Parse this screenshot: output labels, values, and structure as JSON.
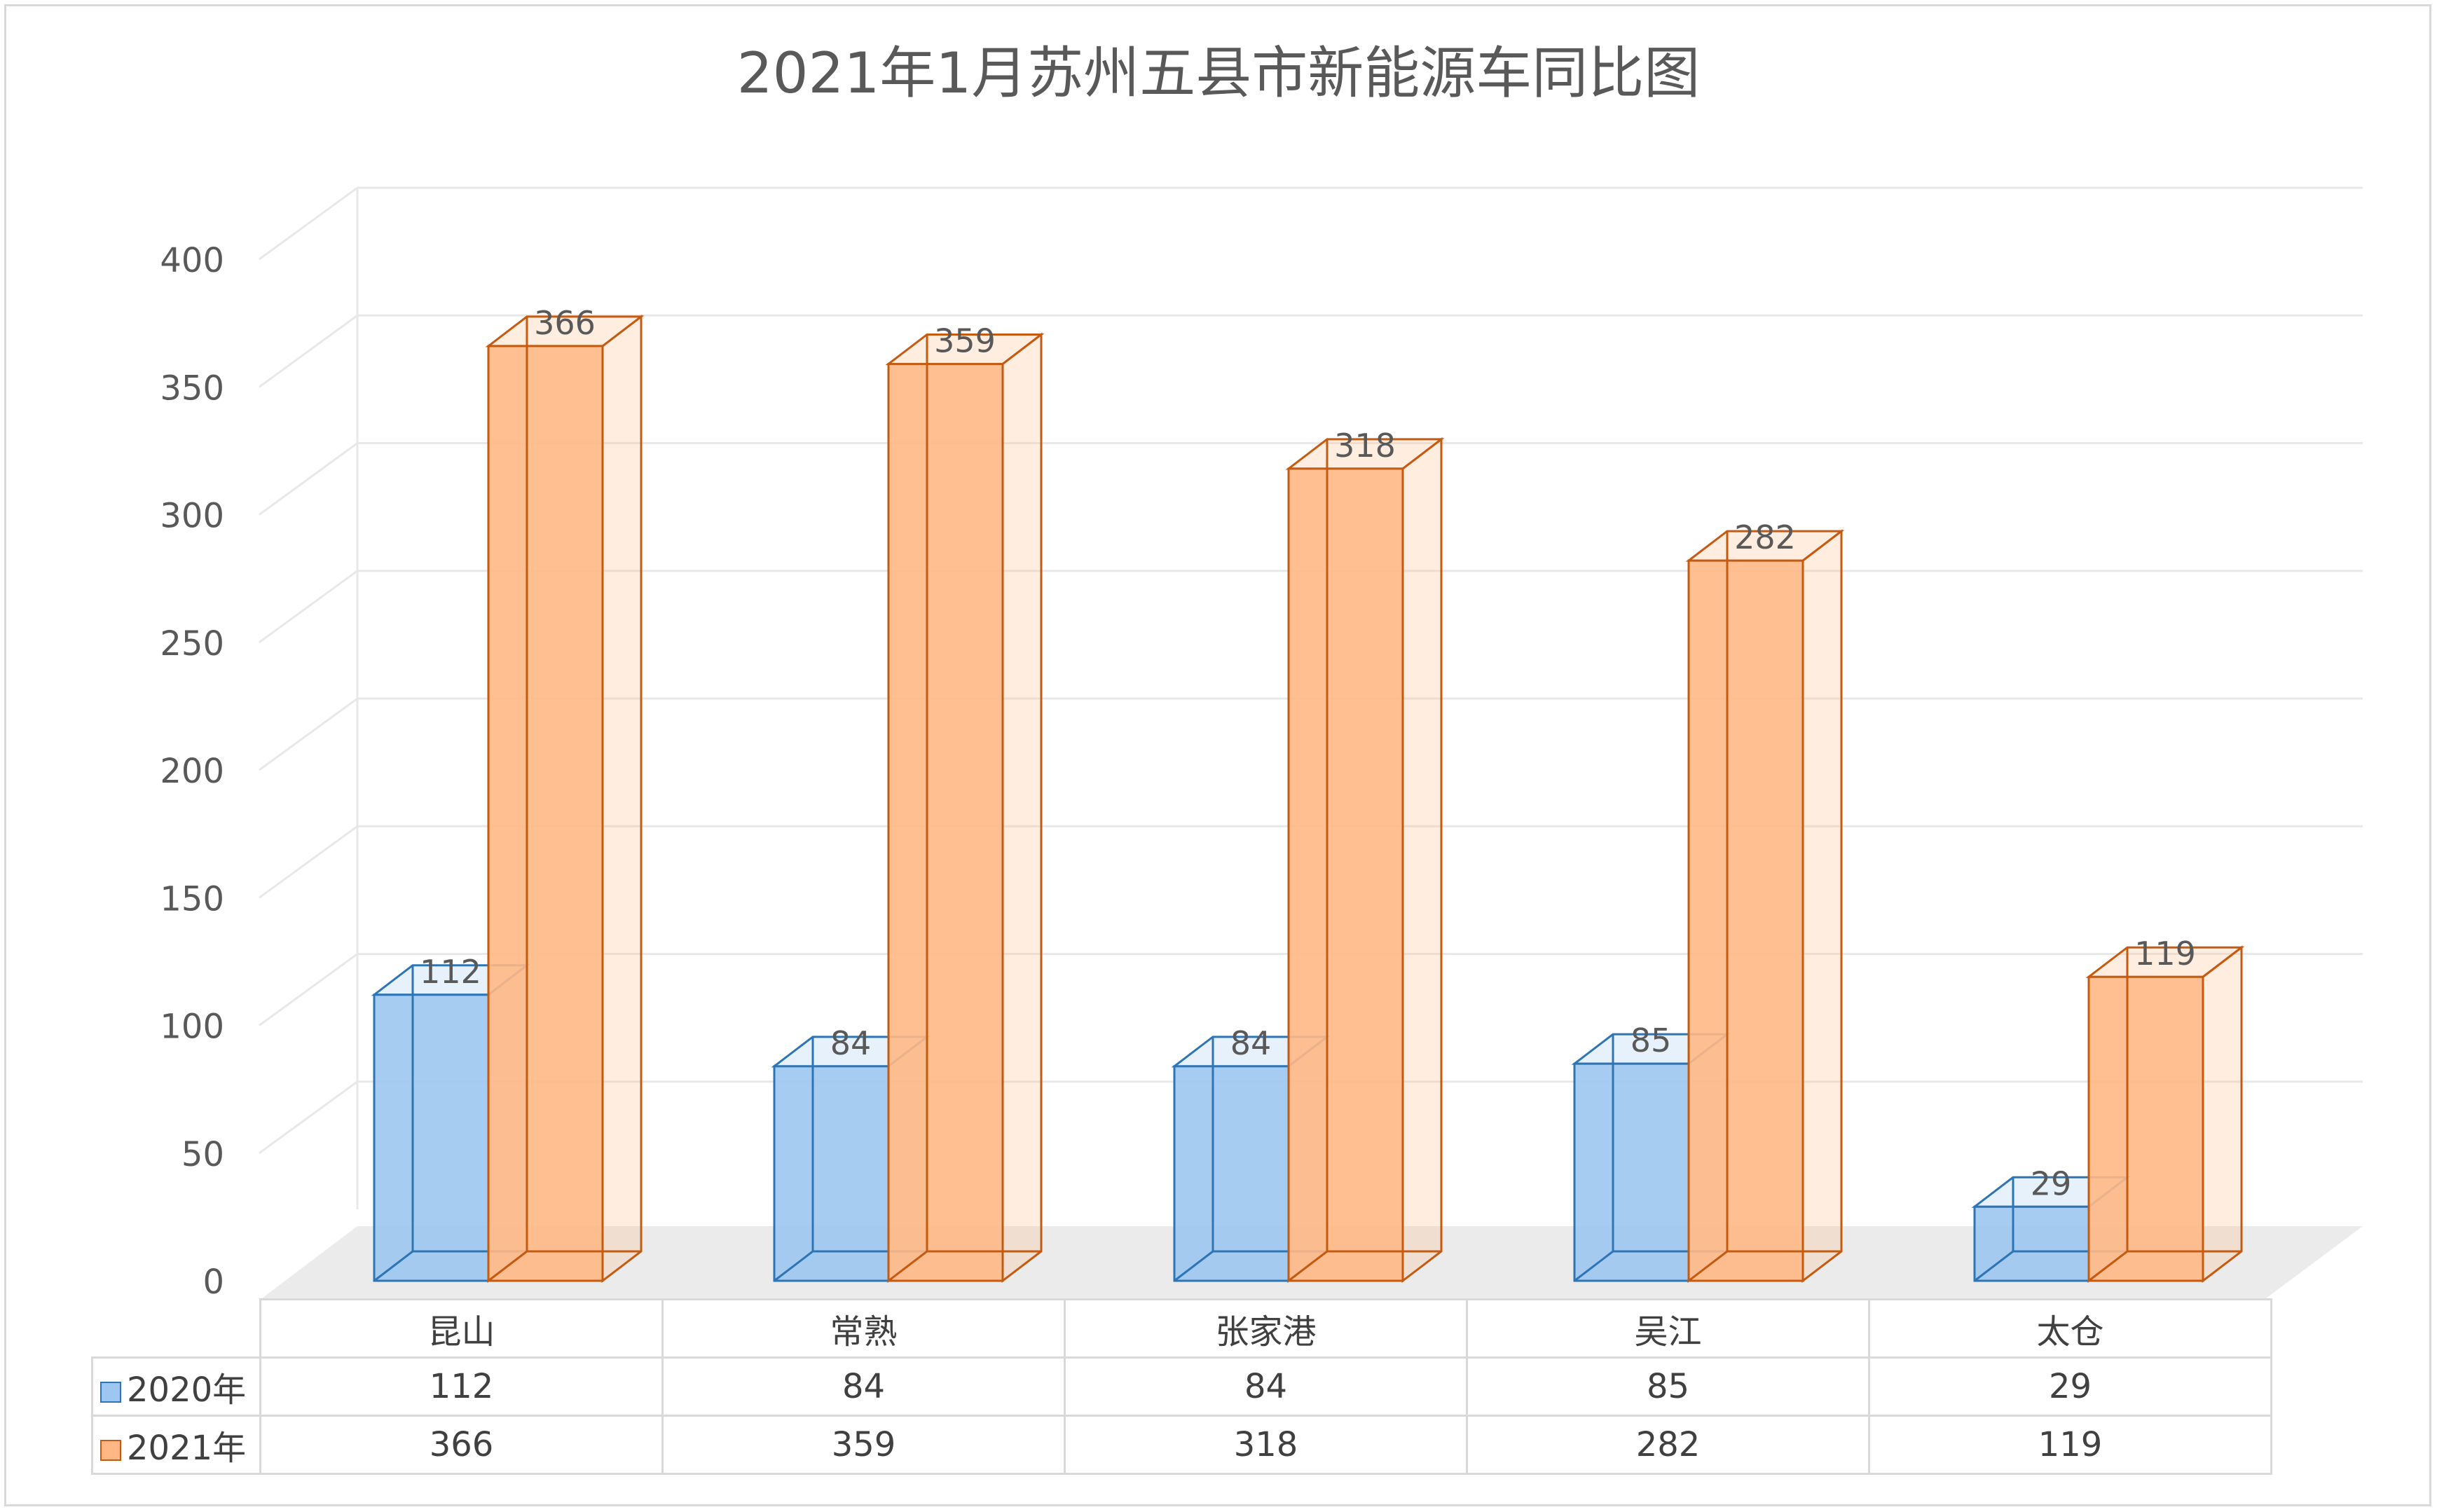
{
  "chart_data": {
    "type": "bar",
    "title": "2021年1月苏州五县市新能源车同比图",
    "categories": [
      "昆山",
      "常熟",
      "张家港",
      "吴江",
      "太仓"
    ],
    "series": [
      {
        "name": "2020年",
        "values": [
          112,
          84,
          84,
          85,
          29
        ],
        "color": "#9dc7f0",
        "edge": "#2e75b6"
      },
      {
        "name": "2021年",
        "values": [
          366,
          359,
          318,
          282,
          119
        ],
        "color": "#ffb885",
        "edge": "#c55a11"
      }
    ],
    "ylim": [
      0,
      400
    ],
    "yticks": [
      0,
      50,
      100,
      150,
      200,
      250,
      300,
      350,
      400
    ],
    "grid": true,
    "legend": "data-table"
  }
}
